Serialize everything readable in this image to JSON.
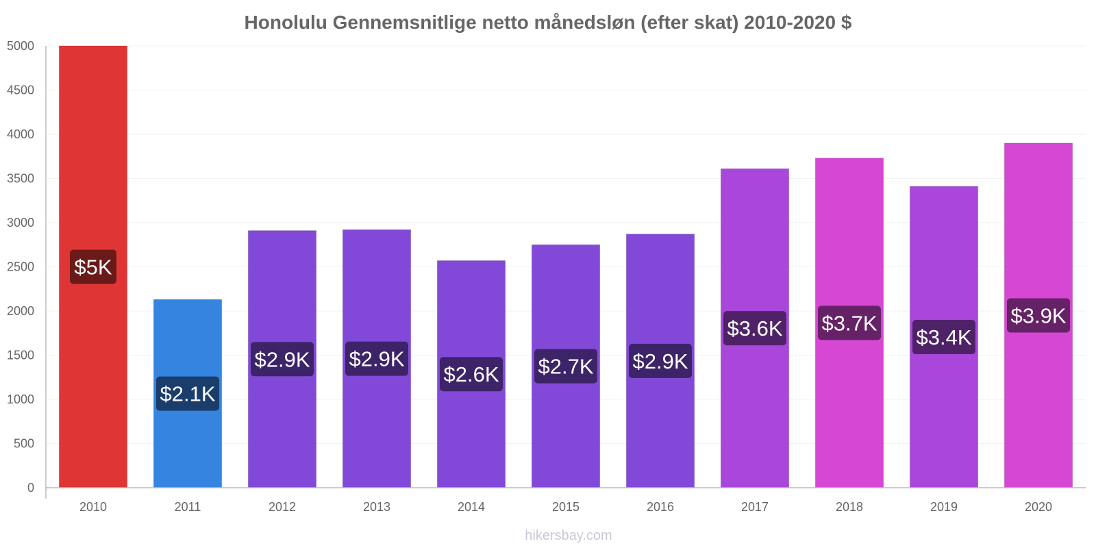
{
  "chart_data": {
    "type": "bar",
    "title": "Honolulu Gennemsnitlige netto månedsløn (efter skat) 2010-2020 $",
    "categories": [
      "2010",
      "2011",
      "2012",
      "2013",
      "2014",
      "2015",
      "2016",
      "2017",
      "2018",
      "2019",
      "2020"
    ],
    "values": [
      5000,
      2130,
      2910,
      2920,
      2570,
      2750,
      2870,
      3610,
      3730,
      3410,
      3900
    ],
    "data_labels": [
      "$5K",
      "$2.1K",
      "$2.9K",
      "$2.9K",
      "$2.6K",
      "$2.7K",
      "$2.9K",
      "$3.6K",
      "$3.7K",
      "$3.4K",
      "$3.9K"
    ],
    "bar_colors": [
      "#e03535",
      "#3584e0",
      "#8249d9",
      "#8249d9",
      "#8249d9",
      "#8249d9",
      "#8249d9",
      "#a847d9",
      "#d647d3",
      "#a847d9",
      "#d647d3"
    ],
    "label_colors": [
      "#6b1a1a",
      "#1a3d6b",
      "#3d2468",
      "#3d2468",
      "#3d2468",
      "#3d2468",
      "#3d2468",
      "#4f2268",
      "#662266",
      "#4f2268",
      "#662266"
    ],
    "ylim": [
      0,
      5000
    ],
    "yticks": [
      0,
      500,
      1000,
      1500,
      2000,
      2500,
      3000,
      3500,
      4000,
      4500,
      5000
    ],
    "grid": true,
    "xlabel": "",
    "ylabel": ""
  },
  "watermark": "hikersbay.com"
}
